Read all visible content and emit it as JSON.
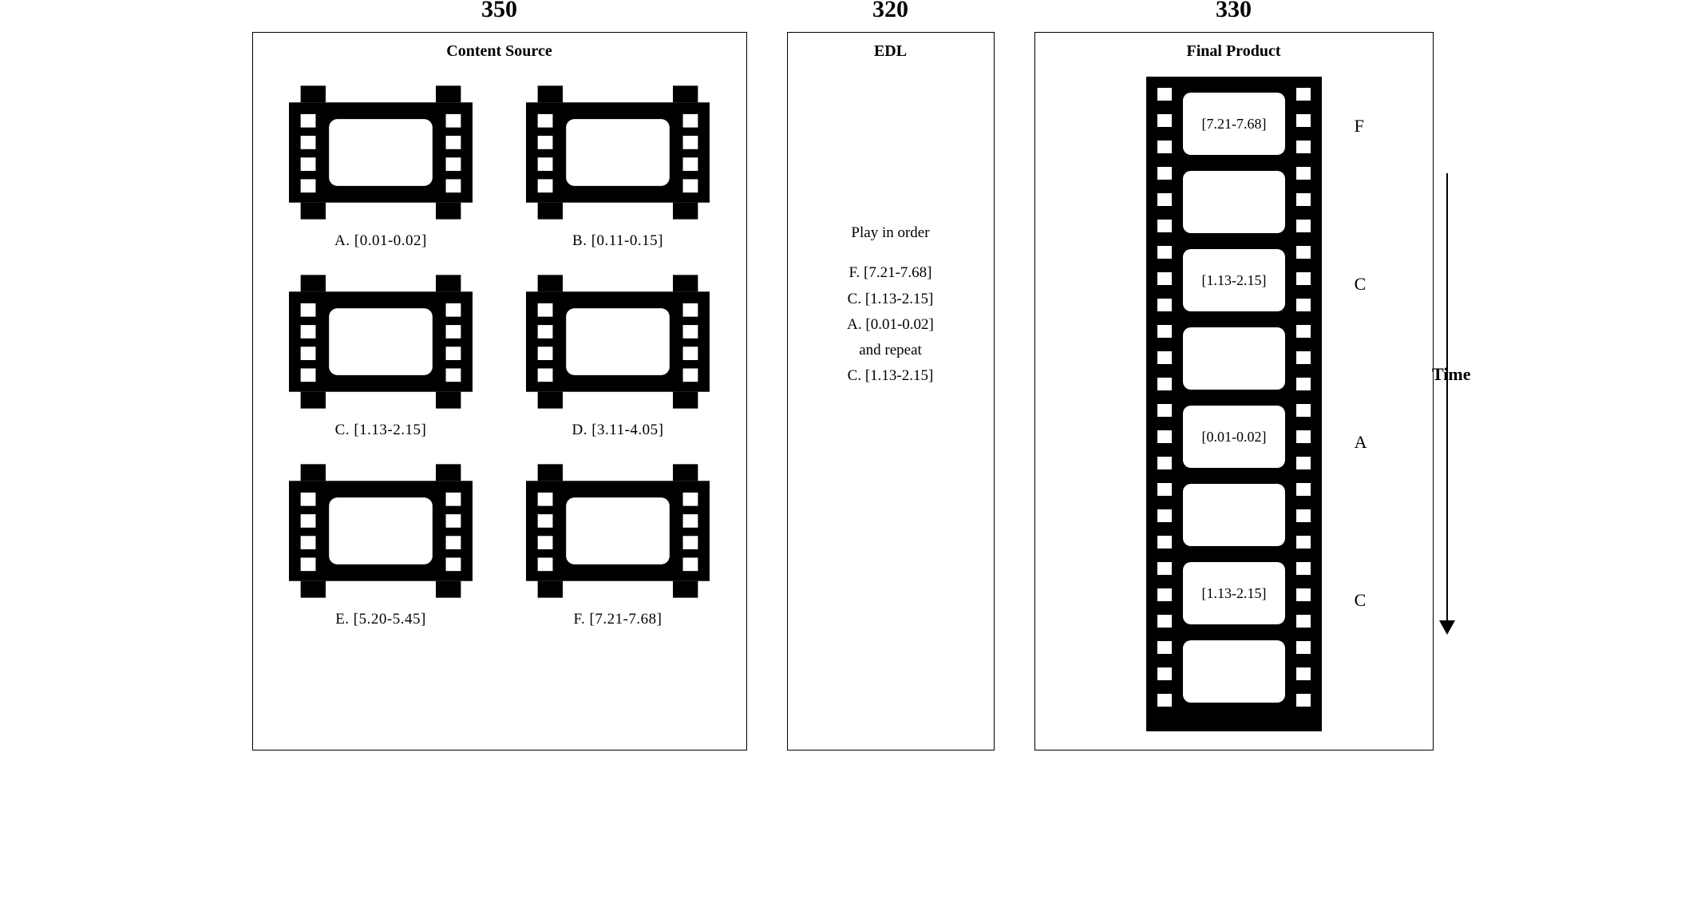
{
  "panels": {
    "content_source": {
      "number": "350",
      "title": "Content Source",
      "clips": [
        {
          "letter": "A.",
          "range": "[0.01-0.02]"
        },
        {
          "letter": "B.",
          "range": "[0.11-0.15]"
        },
        {
          "letter": "C.",
          "range": "[1.13-2.15]"
        },
        {
          "letter": "D.",
          "range": "[3.11-4.05]"
        },
        {
          "letter": "E.",
          "range": "[5.20-5.45]"
        },
        {
          "letter": "F.",
          "range": "[7.21-7.68]"
        }
      ]
    },
    "edl": {
      "number": "320",
      "title": "EDL",
      "header": "Play in order",
      "items": [
        "F.  [7.21-7.68]",
        "C.  [1.13-2.15]",
        "A.  [0.01-0.02]",
        "and repeat",
        "C.  [1.13-2.15]"
      ]
    },
    "final": {
      "number": "330",
      "title": "Final Product",
      "time_label": "Time",
      "frames": [
        {
          "range": "[7.21-7.68]",
          "letter": "F"
        },
        {
          "range": "[1.13-2.15]",
          "letter": "C"
        },
        {
          "range": "[0.01-0.02]",
          "letter": "A"
        },
        {
          "range": "[1.13-2.15]",
          "letter": "C"
        }
      ]
    }
  },
  "style": {
    "film_color": "#000000",
    "bg_color": "#ffffff",
    "text_color": "#000000"
  }
}
